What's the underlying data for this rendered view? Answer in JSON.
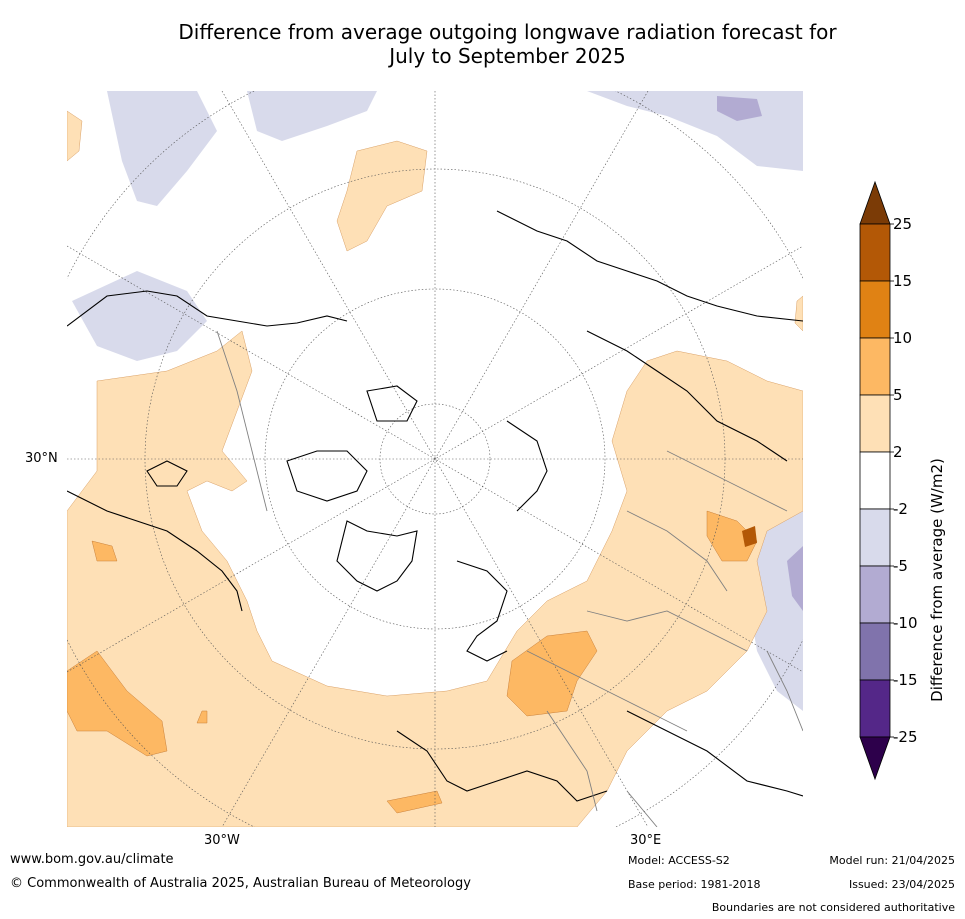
{
  "title_line1": "Difference from average outgoing longwave radiation forecast for",
  "title_line2": "July to September 2025",
  "map": {
    "lat_label": "30°N",
    "lon_labels": [
      "30°W",
      "30°E"
    ],
    "colors": {
      "land_outline": "#000000",
      "borders": "#808080",
      "graticule": "#555555"
    }
  },
  "colorbar": {
    "label": "Difference from average (W/m2)",
    "ticks": [
      "25",
      "15",
      "10",
      "5",
      "2",
      "-2",
      "-5",
      "-10",
      "-15",
      "-25"
    ],
    "colors_top_to_bottom": [
      "#7b3b06",
      "#b35806",
      "#e08214",
      "#fdb863",
      "#fee0b6",
      "#ffffff",
      "#d8daeb",
      "#b2abd2",
      "#8073ac",
      "#542788",
      "#2d004b"
    ]
  },
  "footer": {
    "website": "www.bom.gov.au/climate",
    "copyright": "© Commonwealth of Australia 2025, Australian Bureau of Meteorology",
    "model": "Model: ACCESS-S2",
    "base_period": "Base period: 1981-2018",
    "model_run": "Model run: 21/04/2025",
    "issued": "Issued: 23/04/2025",
    "disclaimer": "Boundaries are not considered authoritative"
  }
}
